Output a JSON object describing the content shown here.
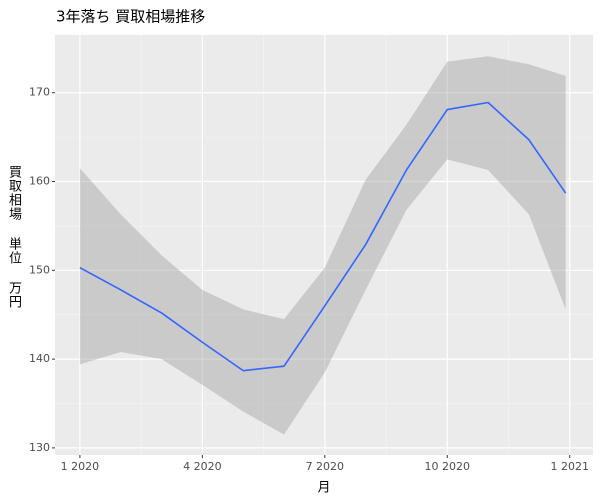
{
  "chart_data": {
    "type": "smooth",
    "title": "3年落ち 買取相場推移",
    "x_label": "月",
    "y_label": "買取相場 単位 万円",
    "x": [
      0,
      1,
      2,
      3,
      4,
      5,
      6,
      7,
      8,
      9,
      10,
      11,
      11.9
    ],
    "values": [
      150.3,
      147.8,
      145.2,
      141.9,
      138.7,
      139.2,
      146.0,
      152.9,
      161.3,
      168.1,
      168.9,
      164.7,
      158.7
    ],
    "lower": [
      139.4,
      140.8,
      140.0,
      137.1,
      134.1,
      131.5,
      138.5,
      147.8,
      156.8,
      162.5,
      161.3,
      156.3,
      145.6
    ],
    "upper": [
      161.5,
      156.3,
      151.7,
      147.8,
      145.6,
      144.5,
      150.3,
      160.2,
      166.4,
      173.5,
      174.1,
      173.2,
      171.9
    ],
    "color": "#3366FF",
    "band_color": "#999999",
    "xlim": [
      -0.61,
      12.57
    ],
    "xticks": [
      {
        "value": 0,
        "label": "1 2020"
      },
      {
        "value": 3,
        "label": "4 2020"
      },
      {
        "value": 6,
        "label": "7 2020"
      },
      {
        "value": 9,
        "label": "10 2020"
      },
      {
        "value": 12,
        "label": "1 2021"
      }
    ],
    "ylim": [
      129.2,
      176.5
    ],
    "yticks": [
      130,
      140,
      150,
      160,
      170
    ],
    "grid": true
  }
}
